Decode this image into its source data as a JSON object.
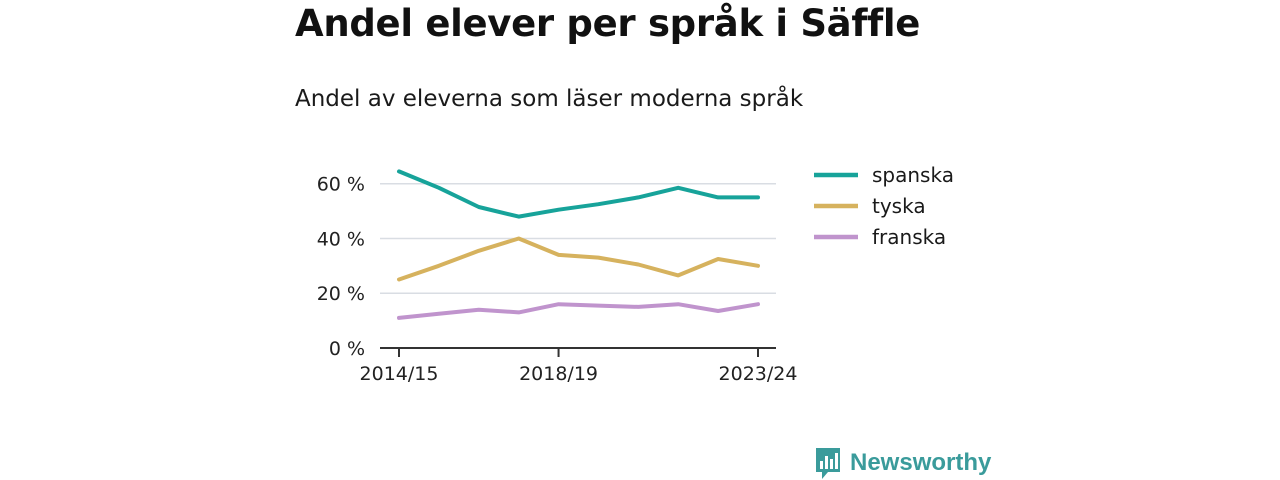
{
  "header": {
    "title": "Andel elever per språk i Säffle",
    "subtitle": "Andel av eleverna som läser moderna språk"
  },
  "brand": {
    "name": "Newsworthy",
    "icon": "newsworthy-logo-icon",
    "color": "#3a9b9b"
  },
  "chart_data": {
    "type": "line",
    "x": [
      "2014/15",
      "2015/16",
      "2016/17",
      "2017/18",
      "2018/19",
      "2019/20",
      "2020/21",
      "2021/22",
      "2022/23",
      "2023/24"
    ],
    "x_tick_labels": [
      "2014/15",
      "2018/19",
      "2023/24"
    ],
    "y_ticks": [
      0,
      20,
      40,
      60
    ],
    "y_tick_labels": [
      "0 %",
      "20 %",
      "40 %",
      "60 %"
    ],
    "ylim": [
      0,
      65
    ],
    "ylabel": "",
    "xlabel": "",
    "grid": true,
    "legend_position": "right",
    "series": [
      {
        "name": "spanska",
        "color": "#17a39a",
        "values": [
          64.5,
          58.5,
          51.5,
          48,
          50.5,
          52.5,
          55,
          58.5,
          55,
          55
        ]
      },
      {
        "name": "tyska",
        "color": "#d6b25e",
        "values": [
          25,
          30,
          35.5,
          40,
          34,
          33,
          30.5,
          26.5,
          32.5,
          30
        ]
      },
      {
        "name": "franska",
        "color": "#c094cd",
        "values": [
          11,
          12.5,
          14,
          13,
          16,
          15.5,
          15,
          16,
          13.5,
          16
        ]
      }
    ]
  }
}
